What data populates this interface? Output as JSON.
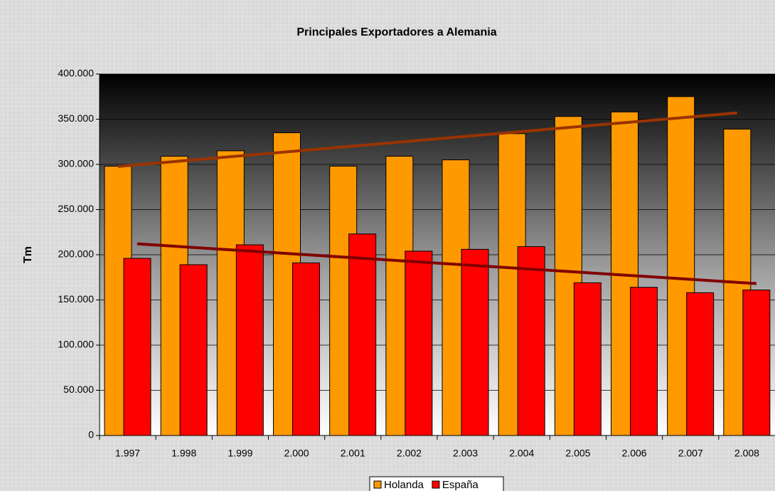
{
  "chart_data": {
    "type": "bar",
    "title": "Principales Exportadores a Alemania",
    "y_label": "Tm",
    "categories": [
      "1.997",
      "1.998",
      "1.999",
      "2.000",
      "2.001",
      "2.002",
      "2.003",
      "2.004",
      "2.005",
      "2.006",
      "2.007",
      "2.008"
    ],
    "series": [
      {
        "name": "Holanda",
        "color": "#ff9900",
        "trend_color": "#993300",
        "values": [
          298000,
          309000,
          315000,
          335000,
          298000,
          309000,
          305000,
          334000,
          353000,
          358000,
          375000,
          339000
        ]
      },
      {
        "name": "España",
        "color": "#ff0000",
        "trend_color": "#800000",
        "values": [
          196000,
          189000,
          211000,
          191000,
          223000,
          204000,
          206000,
          209000,
          169000,
          164000,
          158000,
          161000
        ]
      }
    ],
    "trendline": true,
    "ylim": [
      0,
      400000
    ],
    "yticks": [
      {
        "value": 0,
        "label": "0"
      },
      {
        "value": 50000,
        "label": "50.000"
      },
      {
        "value": 100000,
        "label": "100.000"
      },
      {
        "value": 150000,
        "label": "150.000"
      },
      {
        "value": 200000,
        "label": "200.000"
      },
      {
        "value": 250000,
        "label": "250.000"
      },
      {
        "value": 300000,
        "label": "300.000"
      },
      {
        "value": 350000,
        "label": "350.000"
      },
      {
        "value": 400000,
        "label": "400.000"
      }
    ],
    "grid": true,
    "legend": "bottom"
  }
}
